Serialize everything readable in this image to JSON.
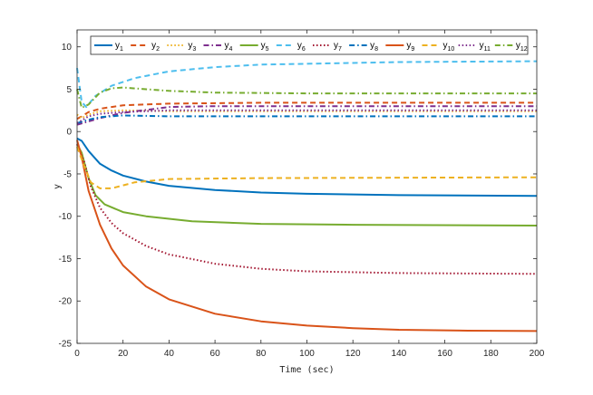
{
  "chart_data": {
    "type": "line",
    "xlabel": "Time (sec)",
    "ylabel": "y",
    "xlim": [
      0,
      200
    ],
    "ylim": [
      -25,
      12
    ],
    "xticks": [
      0,
      20,
      40,
      60,
      80,
      100,
      120,
      140,
      160,
      180,
      200
    ],
    "yticks": [
      -25,
      -20,
      -15,
      -10,
      -5,
      0,
      5,
      10
    ],
    "grid": false,
    "legend_position": "top, horizontal, inside axes",
    "legend_label_base": "y",
    "series": [
      {
        "name": "1",
        "color": "#0072BD",
        "dash": "solid",
        "points": [
          [
            0,
            -0.8
          ],
          [
            2,
            -1.1
          ],
          [
            5,
            -2.3
          ],
          [
            10,
            -3.8
          ],
          [
            15,
            -4.6
          ],
          [
            20,
            -5.2
          ],
          [
            30,
            -5.9
          ],
          [
            40,
            -6.4
          ],
          [
            60,
            -6.9
          ],
          [
            80,
            -7.2
          ],
          [
            100,
            -7.35
          ],
          [
            140,
            -7.5
          ],
          [
            200,
            -7.6
          ]
        ]
      },
      {
        "name": "2",
        "color": "#D95319",
        "dash": "dashed",
        "points": [
          [
            0,
            1.5
          ],
          [
            2,
            1.8
          ],
          [
            5,
            2.3
          ],
          [
            10,
            2.7
          ],
          [
            20,
            3.1
          ],
          [
            40,
            3.3
          ],
          [
            80,
            3.4
          ],
          [
            200,
            3.4
          ]
        ]
      },
      {
        "name": "3",
        "color": "#EDB120",
        "dash": "dotted",
        "points": [
          [
            0,
            2.0
          ],
          [
            2,
            1.6
          ],
          [
            5,
            2.0
          ],
          [
            10,
            2.4
          ],
          [
            20,
            2.5
          ],
          [
            40,
            2.4
          ],
          [
            200,
            2.4
          ]
        ]
      },
      {
        "name": "4",
        "color": "#7E2F8E",
        "dash": "dashdot",
        "points": [
          [
            0,
            0.8
          ],
          [
            5,
            1.2
          ],
          [
            10,
            1.6
          ],
          [
            20,
            2.2
          ],
          [
            40,
            2.9
          ],
          [
            60,
            3.0
          ],
          [
            100,
            3.0
          ],
          [
            200,
            3.0
          ]
        ]
      },
      {
        "name": "5",
        "color": "#77AC30",
        "dash": "solid",
        "points": [
          [
            0,
            -1.5
          ],
          [
            2,
            -2.5
          ],
          [
            5,
            -5.5
          ],
          [
            8,
            -7.5
          ],
          [
            12,
            -8.6
          ],
          [
            20,
            -9.5
          ],
          [
            30,
            -10.0
          ],
          [
            50,
            -10.6
          ],
          [
            80,
            -10.9
          ],
          [
            120,
            -11.0
          ],
          [
            200,
            -11.1
          ]
        ]
      },
      {
        "name": "6",
        "color": "#4DBEEE",
        "dash": "dashed",
        "points": [
          [
            0,
            7.5
          ],
          [
            2,
            3.5
          ],
          [
            4,
            2.9
          ],
          [
            8,
            4.2
          ],
          [
            15,
            5.4
          ],
          [
            25,
            6.3
          ],
          [
            40,
            7.1
          ],
          [
            60,
            7.6
          ],
          [
            80,
            7.9
          ],
          [
            100,
            8.0
          ],
          [
            140,
            8.2
          ],
          [
            200,
            8.3
          ]
        ]
      },
      {
        "name": "7",
        "color": "#A2142F",
        "dash": "dotted",
        "points": [
          [
            0,
            -1.5
          ],
          [
            3,
            -3.5
          ],
          [
            6,
            -6.5
          ],
          [
            10,
            -9.0
          ],
          [
            15,
            -10.8
          ],
          [
            20,
            -12.0
          ],
          [
            30,
            -13.5
          ],
          [
            40,
            -14.5
          ],
          [
            60,
            -15.6
          ],
          [
            80,
            -16.2
          ],
          [
            100,
            -16.5
          ],
          [
            140,
            -16.7
          ],
          [
            200,
            -16.8
          ]
        ]
      },
      {
        "name": "8",
        "color": "#0072BD",
        "dash": "dashdot",
        "points": [
          [
            0,
            1.0
          ],
          [
            5,
            1.4
          ],
          [
            10,
            1.7
          ],
          [
            20,
            1.9
          ],
          [
            40,
            1.8
          ],
          [
            80,
            1.8
          ],
          [
            200,
            1.8
          ]
        ]
      },
      {
        "name": "9",
        "color": "#D95319",
        "dash": "solid",
        "points": [
          [
            0,
            -1.0
          ],
          [
            2,
            -3.0
          ],
          [
            5,
            -7.0
          ],
          [
            10,
            -11.0
          ],
          [
            15,
            -13.8
          ],
          [
            20,
            -15.8
          ],
          [
            30,
            -18.3
          ],
          [
            40,
            -19.8
          ],
          [
            60,
            -21.5
          ],
          [
            80,
            -22.4
          ],
          [
            100,
            -22.9
          ],
          [
            120,
            -23.2
          ],
          [
            140,
            -23.4
          ],
          [
            170,
            -23.5
          ],
          [
            200,
            -23.55
          ]
        ]
      },
      {
        "name": "10",
        "color": "#EDB120",
        "dash": "dashed",
        "points": [
          [
            0,
            -1.8
          ],
          [
            3,
            -4.0
          ],
          [
            6,
            -6.0
          ],
          [
            10,
            -6.7
          ],
          [
            15,
            -6.7
          ],
          [
            25,
            -6.0
          ],
          [
            40,
            -5.6
          ],
          [
            80,
            -5.5
          ],
          [
            200,
            -5.4
          ]
        ]
      },
      {
        "name": "11",
        "color": "#7E2F8E",
        "dash": "dotted",
        "points": [
          [
            0,
            1.0
          ],
          [
            5,
            1.8
          ],
          [
            10,
            2.1
          ],
          [
            20,
            2.3
          ],
          [
            40,
            2.5
          ],
          [
            100,
            2.5
          ],
          [
            200,
            2.5
          ]
        ]
      },
      {
        "name": "12",
        "color": "#77AC30",
        "dash": "dashdot",
        "points": [
          [
            0,
            5.0
          ],
          [
            2,
            2.8
          ],
          [
            5,
            3.2
          ],
          [
            10,
            4.6
          ],
          [
            15,
            5.1
          ],
          [
            20,
            5.2
          ],
          [
            30,
            5.0
          ],
          [
            40,
            4.8
          ],
          [
            60,
            4.6
          ],
          [
            100,
            4.5
          ],
          [
            200,
            4.5
          ]
        ]
      }
    ]
  }
}
